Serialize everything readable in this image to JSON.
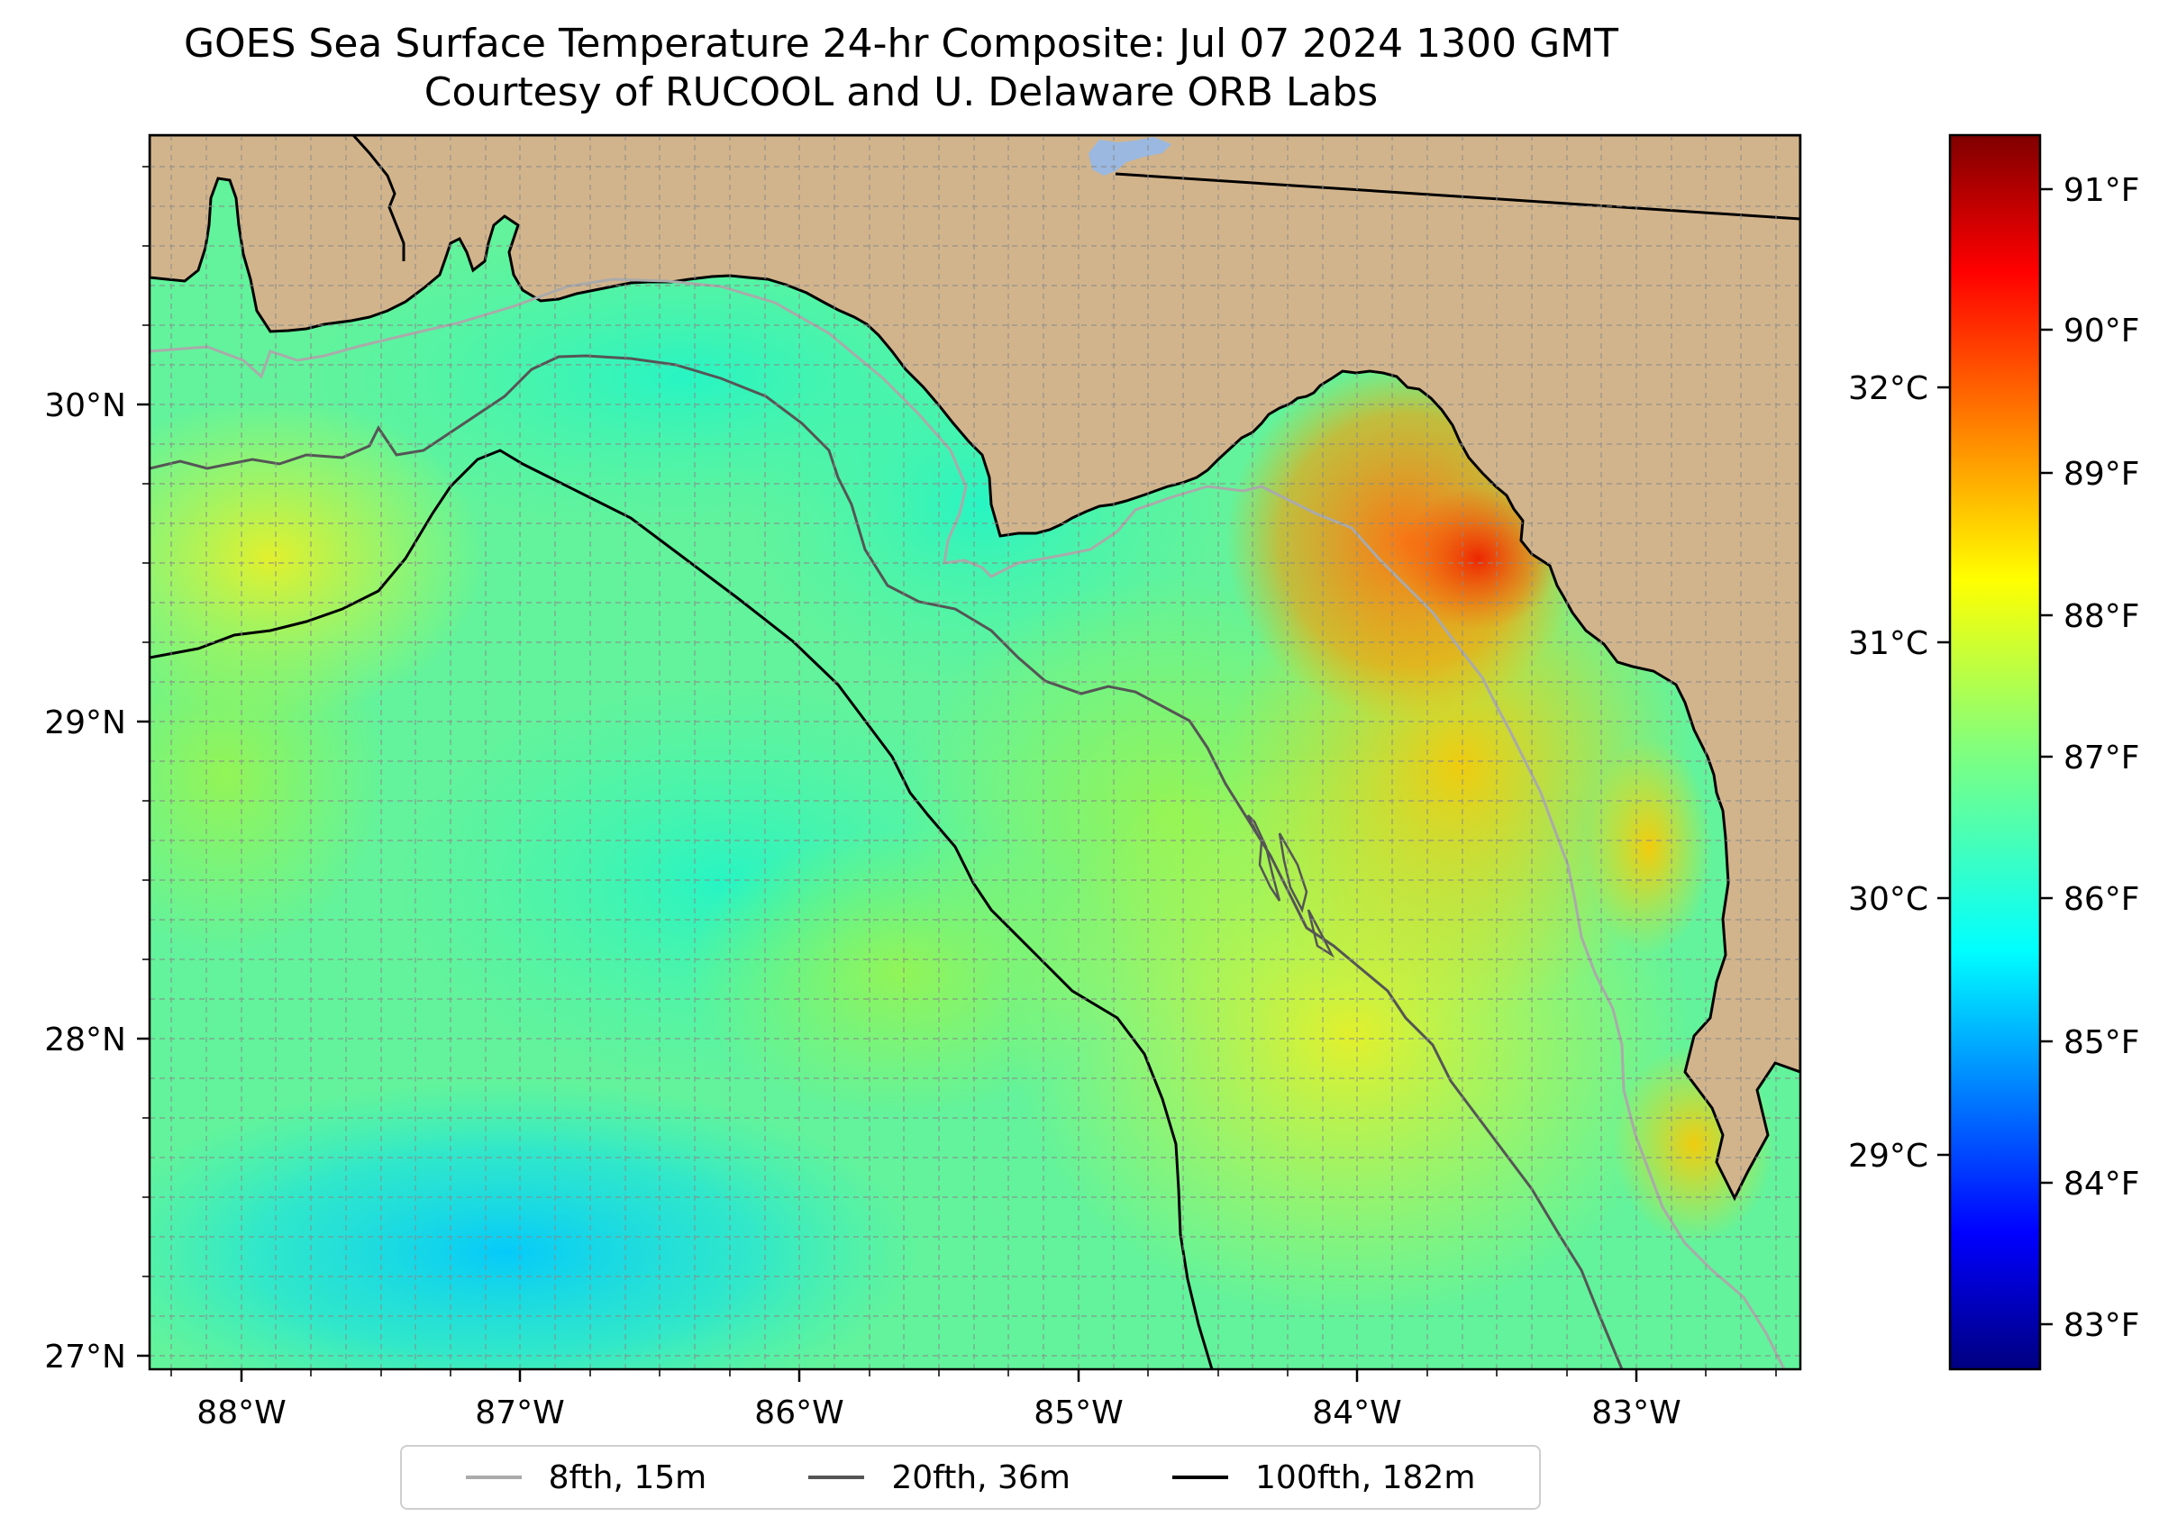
{
  "title": "GOES Sea Surface Temperature 24-hr Composite: Jul 07 2024 1300 GMT",
  "subtitle": "Courtesy of RUCOOL and U. Delaware ORB Labs",
  "axes": {
    "lon_ticks": [
      "88°W",
      "87°W",
      "86°W",
      "85°W",
      "84°W",
      "83°W"
    ],
    "lat_ticks": [
      "30°N",
      "29°N",
      "28°N",
      "27°N"
    ]
  },
  "colorbar": {
    "celsius_ticks": [
      "32°C",
      "31°C",
      "30°C",
      "29°C"
    ],
    "fahrenheit_ticks": [
      "91°F",
      "90°F",
      "89°F",
      "88°F",
      "87°F",
      "86°F",
      "85°F",
      "84°F",
      "83°F"
    ]
  },
  "legend": [
    {
      "label": "8fth, 15m",
      "color": "#aaaaaa"
    },
    {
      "label": "20fth, 36m",
      "color": "#555555"
    },
    {
      "label": "100fth, 182m",
      "color": "#000000"
    }
  ],
  "colors": {
    "land": "#d2b48c",
    "lake": "#9ab8e0"
  }
}
